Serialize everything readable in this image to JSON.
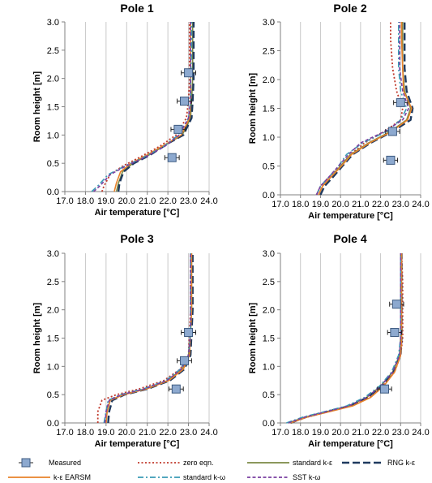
{
  "chart_data": {
    "type": "line",
    "xlabel": "Air temperature [°C]",
    "ylabel": "Room height [m]",
    "xlim": [
      17.0,
      24.0
    ],
    "ylim": [
      0.0,
      3.0
    ],
    "xticks": [
      "17.0",
      "18.0",
      "19.0",
      "20.0",
      "21.0",
      "22.0",
      "23.0",
      "24.0"
    ],
    "yticks": [
      "0.0",
      "0.5",
      "1.0",
      "1.5",
      "2.0",
      "2.5",
      "3.0"
    ],
    "grid": "vertical gridlines",
    "legend_position": "bottom",
    "series_styles": [
      {
        "name": "Measured",
        "color": "#8da9cf",
        "style": "square with horizontal error bars"
      },
      {
        "name": "zero eqn.",
        "color": "#c0392b",
        "style": "dotted"
      },
      {
        "name": "standard k-ε",
        "color": "#7c8a45",
        "style": "solid"
      },
      {
        "name": "RNG k-ε",
        "color": "#1f3a5f",
        "style": "long dash"
      },
      {
        "name": "k-ε EARSM",
        "color": "#e8822a",
        "style": "solid"
      },
      {
        "name": "standard k-ω",
        "color": "#3a9bb5",
        "style": "dash-dot"
      },
      {
        "name": "SST k-ω",
        "color": "#7a3fa0",
        "style": "dashed"
      }
    ],
    "panels": [
      {
        "title": "Pole 1",
        "measured": {
          "x": [
            23.0,
            22.8,
            22.5,
            22.2
          ],
          "y": [
            2.1,
            1.6,
            1.1,
            0.6
          ],
          "err": 0.35
        },
        "series": [
          {
            "name": "zero eqn.",
            "x": [
              18.8,
              18.9,
              19.2,
              19.8,
              20.6,
              21.6,
              22.4,
              22.9,
              23.0,
              23.05,
              23.05,
              23.05
            ],
            "y": [
              0,
              0.1,
              0.3,
              0.45,
              0.6,
              0.8,
              1.0,
              1.3,
              1.6,
              2.0,
              2.5,
              3.0
            ]
          },
          {
            "name": "standard k-ε",
            "x": [
              19.5,
              19.6,
              19.8,
              20.3,
              21.1,
              22.0,
              22.7,
              23.1,
              23.15,
              23.2,
              23.2,
              23.2
            ],
            "y": [
              0,
              0.15,
              0.35,
              0.5,
              0.65,
              0.85,
              1.0,
              1.3,
              1.6,
              2.0,
              2.5,
              3.0
            ]
          },
          {
            "name": "RNG k-ε",
            "x": [
              19.6,
              19.65,
              19.85,
              20.35,
              21.15,
              22.0,
              22.75,
              23.15,
              23.2,
              23.25,
              23.25,
              23.25
            ],
            "y": [
              0,
              0.15,
              0.35,
              0.5,
              0.65,
              0.85,
              1.0,
              1.3,
              1.6,
              2.0,
              2.5,
              3.0
            ]
          },
          {
            "name": "k-ε EARSM",
            "x": [
              19.4,
              19.5,
              19.7,
              20.2,
              21.0,
              21.95,
              22.65,
              23.05,
              23.1,
              23.1,
              23.1,
              23.1
            ],
            "y": [
              0,
              0.15,
              0.35,
              0.5,
              0.65,
              0.85,
              1.0,
              1.3,
              1.6,
              2.0,
              2.5,
              3.0
            ]
          },
          {
            "name": "standard k-ω",
            "x": [
              18.3,
              18.6,
              19.1,
              19.9,
              20.8,
              21.8,
              22.5,
              23.0,
              23.1,
              23.1,
              23.15,
              23.15
            ],
            "y": [
              0,
              0.1,
              0.3,
              0.45,
              0.6,
              0.8,
              1.0,
              1.3,
              1.6,
              2.0,
              2.5,
              3.0
            ]
          },
          {
            "name": "SST k-ω",
            "x": [
              18.4,
              18.7,
              19.2,
              19.95,
              20.85,
              21.85,
              22.55,
              23.0,
              23.1,
              23.1,
              23.1,
              23.1
            ],
            "y": [
              0,
              0.1,
              0.3,
              0.45,
              0.6,
              0.8,
              1.0,
              1.3,
              1.6,
              2.0,
              2.5,
              3.0
            ]
          }
        ]
      },
      {
        "title": "Pole 2",
        "measured": {
          "x": [
            23.0,
            22.6,
            22.5
          ],
          "y": [
            1.6,
            1.1,
            0.6
          ],
          "err": 0.35
        },
        "series": [
          {
            "name": "zero eqn.",
            "x": [
              18.8,
              19.0,
              19.4,
              20.0,
              20.5,
              21.2,
              22.2,
              23.0,
              23.1,
              22.8,
              22.6,
              22.5,
              22.5
            ],
            "y": [
              0,
              0.15,
              0.3,
              0.5,
              0.7,
              0.9,
              1.1,
              1.3,
              1.5,
              1.8,
              2.2,
              2.7,
              3.0
            ]
          },
          {
            "name": "standard k-ε",
            "x": [
              18.9,
              19.1,
              19.5,
              20.0,
              20.5,
              21.4,
              22.5,
              23.3,
              23.5,
              23.2,
              23.1,
              23.1,
              23.1
            ],
            "y": [
              0,
              0.15,
              0.3,
              0.5,
              0.7,
              0.9,
              1.1,
              1.3,
              1.5,
              1.8,
              2.2,
              2.7,
              3.0
            ]
          },
          {
            "name": "RNG k-ε",
            "x": [
              19.0,
              19.2,
              19.6,
              20.1,
              20.6,
              21.5,
              22.6,
              23.5,
              23.6,
              23.3,
              23.2,
              23.2,
              23.2
            ],
            "y": [
              0,
              0.15,
              0.3,
              0.5,
              0.7,
              0.9,
              1.1,
              1.3,
              1.5,
              1.8,
              2.2,
              2.7,
              3.0
            ]
          },
          {
            "name": "k-ε EARSM",
            "x": [
              18.9,
              19.1,
              19.5,
              20.05,
              20.55,
              21.45,
              22.55,
              23.35,
              23.55,
              23.15,
              23.1,
              23.05,
              23.05
            ],
            "y": [
              0,
              0.15,
              0.3,
              0.5,
              0.7,
              0.9,
              1.1,
              1.3,
              1.5,
              1.8,
              2.2,
              2.7,
              3.0
            ]
          },
          {
            "name": "standard k-ω",
            "x": [
              18.8,
              19.0,
              19.4,
              19.9,
              20.3,
              21.1,
              22.3,
              23.0,
              23.3,
              23.0,
              22.9,
              22.9,
              22.9
            ],
            "y": [
              0,
              0.15,
              0.3,
              0.5,
              0.7,
              0.9,
              1.1,
              1.3,
              1.5,
              1.8,
              2.2,
              2.7,
              3.0
            ]
          },
          {
            "name": "SST k-ω",
            "x": [
              18.8,
              19.0,
              19.4,
              19.9,
              20.4,
              21.0,
              22.2,
              23.1,
              23.4,
              23.1,
              22.95,
              22.95,
              22.95
            ],
            "y": [
              0,
              0.15,
              0.3,
              0.5,
              0.7,
              0.9,
              1.1,
              1.3,
              1.5,
              1.8,
              2.2,
              2.7,
              3.0
            ]
          }
        ]
      },
      {
        "title": "Pole 3",
        "measured": {
          "x": [
            23.0,
            22.8,
            22.4
          ],
          "y": [
            1.6,
            1.1,
            0.6
          ],
          "err": 0.35
        },
        "series": [
          {
            "name": "zero eqn.",
            "x": [
              18.6,
              18.6,
              18.8,
              19.5,
              20.6,
              21.8,
              22.6,
              23.0,
              23.05,
              23.1,
              23.1,
              23.1
            ],
            "y": [
              0,
              0.2,
              0.4,
              0.5,
              0.6,
              0.75,
              0.95,
              1.2,
              1.6,
              2.0,
              2.5,
              3.0
            ]
          },
          {
            "name": "standard k-ε",
            "x": [
              19.0,
              19.05,
              19.2,
              19.8,
              20.9,
              22.0,
              22.7,
              23.0,
              23.1,
              23.15,
              23.15,
              23.15
            ],
            "y": [
              0,
              0.2,
              0.4,
              0.5,
              0.6,
              0.75,
              0.95,
              1.2,
              1.6,
              2.0,
              2.5,
              3.0
            ]
          },
          {
            "name": "RNG k-ε",
            "x": [
              19.1,
              19.15,
              19.3,
              19.9,
              21.0,
              22.1,
              22.8,
              23.1,
              23.15,
              23.2,
              23.2,
              23.2
            ],
            "y": [
              0,
              0.2,
              0.4,
              0.5,
              0.6,
              0.75,
              0.95,
              1.2,
              1.6,
              2.0,
              2.5,
              3.0
            ]
          },
          {
            "name": "k-ε EARSM",
            "x": [
              19.0,
              19.05,
              19.2,
              19.85,
              20.95,
              22.05,
              22.75,
              23.05,
              23.1,
              23.15,
              23.15,
              23.15
            ],
            "y": [
              0,
              0.2,
              0.4,
              0.5,
              0.6,
              0.75,
              0.95,
              1.2,
              1.6,
              2.0,
              2.5,
              3.0
            ]
          },
          {
            "name": "standard k-ω",
            "x": [
              18.9,
              19.0,
              19.1,
              19.7,
              20.8,
              21.9,
              22.6,
              23.0,
              23.1,
              23.1,
              23.1,
              23.1
            ],
            "y": [
              0,
              0.2,
              0.4,
              0.5,
              0.6,
              0.75,
              0.95,
              1.2,
              1.6,
              2.0,
              2.5,
              3.0
            ]
          },
          {
            "name": "SST k-ω",
            "x": [
              18.95,
              19.0,
              19.15,
              19.75,
              20.85,
              21.95,
              22.65,
              23.0,
              23.1,
              23.1,
              23.1,
              23.1
            ],
            "y": [
              0,
              0.2,
              0.4,
              0.5,
              0.6,
              0.75,
              0.95,
              1.2,
              1.6,
              2.0,
              2.5,
              3.0
            ]
          }
        ]
      },
      {
        "title": "Pole 4",
        "measured": {
          "x": [
            22.8,
            22.7,
            22.2
          ],
          "y": [
            2.1,
            1.6,
            0.6
          ],
          "err": 0.35
        },
        "series": [
          {
            "name": "zero eqn.",
            "x": [
              17.5,
              18.3,
              19.4,
              20.5,
              21.4,
              22.1,
              22.7,
              23.0,
              23.1,
              23.1,
              23.1,
              23.05
            ],
            "y": [
              0,
              0.1,
              0.2,
              0.3,
              0.45,
              0.65,
              0.9,
              1.2,
              1.5,
              2.0,
              2.5,
              3.0
            ]
          },
          {
            "name": "standard k-ε",
            "x": [
              17.4,
              18.2,
              19.3,
              20.4,
              21.3,
              22.0,
              22.6,
              22.95,
              23.0,
              23.0,
              23.0,
              23.0
            ],
            "y": [
              0,
              0.1,
              0.2,
              0.3,
              0.45,
              0.65,
              0.9,
              1.2,
              1.5,
              2.0,
              2.5,
              3.0
            ]
          },
          {
            "name": "RNG k-ε",
            "x": [
              17.5,
              18.25,
              19.35,
              20.45,
              21.35,
              22.05,
              22.65,
              23.0,
              23.05,
              23.05,
              23.05,
              23.05
            ],
            "y": [
              0,
              0.1,
              0.2,
              0.3,
              0.45,
              0.65,
              0.9,
              1.2,
              1.5,
              2.0,
              2.5,
              3.0
            ]
          },
          {
            "name": "k-ε EARSM",
            "x": [
              17.5,
              18.3,
              19.45,
              20.6,
              21.5,
              22.15,
              22.7,
              23.0,
              23.05,
              23.05,
              23.05,
              23.05
            ],
            "y": [
              0,
              0.1,
              0.2,
              0.3,
              0.45,
              0.65,
              0.9,
              1.2,
              1.5,
              2.0,
              2.5,
              3.0
            ]
          },
          {
            "name": "standard k-ω",
            "x": [
              17.3,
              18.1,
              19.2,
              20.3,
              21.2,
              21.95,
              22.55,
              22.9,
              23.0,
              23.0,
              23.0,
              23.0
            ],
            "y": [
              0,
              0.1,
              0.2,
              0.3,
              0.45,
              0.65,
              0.9,
              1.2,
              1.5,
              2.0,
              2.5,
              3.0
            ]
          },
          {
            "name": "SST k-ω",
            "x": [
              17.4,
              18.2,
              19.3,
              20.4,
              21.3,
              22.0,
              22.6,
              22.95,
              23.0,
              23.0,
              23.0,
              23.0
            ],
            "y": [
              0,
              0.1,
              0.2,
              0.3,
              0.45,
              0.65,
              0.9,
              1.2,
              1.5,
              2.0,
              2.5,
              3.0
            ]
          }
        ]
      }
    ]
  }
}
